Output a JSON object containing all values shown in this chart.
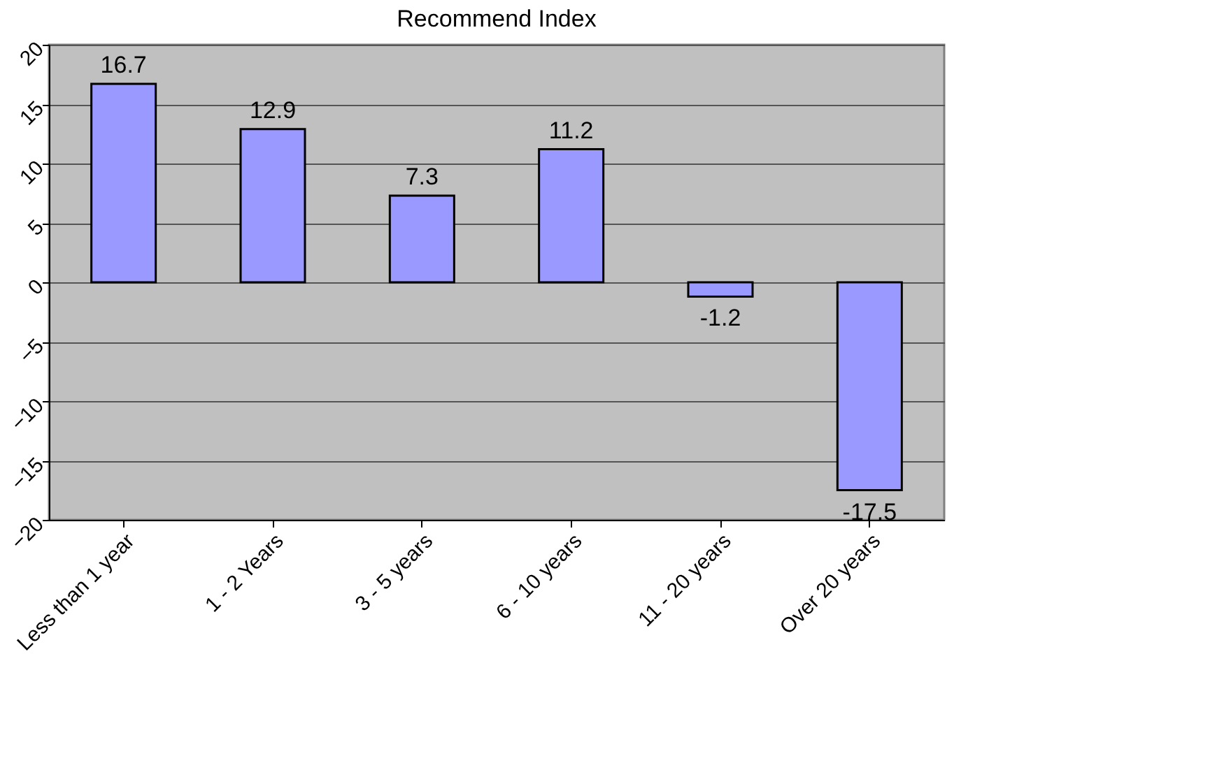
{
  "chart_data": {
    "type": "bar",
    "title": "Recommend Index",
    "categories": [
      "Less than 1 year",
      "1 - 2 Years",
      "3 - 5 years",
      "6 - 10 years",
      "11 - 20 years",
      "Over 20 years"
    ],
    "values": [
      16.7,
      12.9,
      7.3,
      11.2,
      -1.2,
      -17.5
    ],
    "color": "#9999ff",
    "ylim": [
      -20,
      20
    ],
    "yticks": [
      -20,
      -15,
      -10,
      -5,
      0,
      5,
      10,
      15,
      20
    ],
    "grid": "y",
    "data_labels": true
  }
}
